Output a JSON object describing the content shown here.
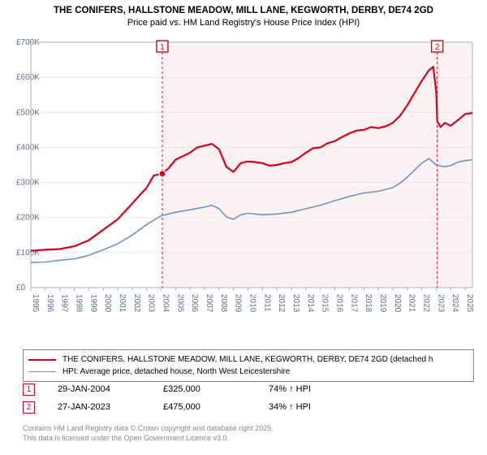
{
  "title_line1": "THE CONIFERS, HALLSTONE MEADOW, MILL LANE, KEGWORTH, DERBY, DE74 2GD",
  "title_line2": "Price paid vs. HM Land Registry's House Price Index (HPI)",
  "chart": {
    "type": "line",
    "background_color": "#ffffff",
    "plot_border_color": "#aab2c4",
    "grid_color": "#e3e7ef",
    "x_min": 1995,
    "x_max": 2025.5,
    "y_min": 0,
    "y_max": 700000,
    "y_ticks": [
      0,
      100000,
      200000,
      300000,
      400000,
      500000,
      600000,
      700000
    ],
    "y_tick_labels": [
      "£0",
      "£100K",
      "£200K",
      "£300K",
      "£400K",
      "£500K",
      "£600K",
      "£700K"
    ],
    "x_ticks": [
      1995,
      1996,
      1997,
      1998,
      1999,
      2000,
      2001,
      2002,
      2003,
      2004,
      2005,
      2006,
      2007,
      2008,
      2009,
      2010,
      2011,
      2012,
      2013,
      2014,
      2015,
      2016,
      2017,
      2018,
      2019,
      2020,
      2021,
      2022,
      2023,
      2024,
      2025
    ],
    "marker_lines": [
      {
        "x": 2004.08,
        "label": "1",
        "color": "#d9001b"
      },
      {
        "x": 2023.07,
        "label": "2",
        "color": "#d9001b"
      }
    ],
    "shade": {
      "from": 2004.08,
      "to": 2025.5,
      "color": "#fdf2f3"
    },
    "series": [
      {
        "name": "THE CONIFERS, HALLSTONE MEADOW, MILL LANE, KEGWORTH, DERBY, DE74 2GD (detached h",
        "color": "#d9001b",
        "width": 2.2,
        "points": [
          [
            1995,
            105000
          ],
          [
            1996,
            108000
          ],
          [
            1997,
            110000
          ],
          [
            1998,
            118000
          ],
          [
            1999,
            135000
          ],
          [
            2000,
            165000
          ],
          [
            2001,
            195000
          ],
          [
            2002,
            240000
          ],
          [
            2003,
            285000
          ],
          [
            2003.5,
            320000
          ],
          [
            2004.08,
            325000
          ],
          [
            2004.5,
            340000
          ],
          [
            2005,
            365000
          ],
          [
            2005.5,
            375000
          ],
          [
            2006,
            385000
          ],
          [
            2006.5,
            400000
          ],
          [
            2007,
            405000
          ],
          [
            2007.5,
            410000
          ],
          [
            2008,
            395000
          ],
          [
            2008.5,
            345000
          ],
          [
            2009,
            330000
          ],
          [
            2009.5,
            355000
          ],
          [
            2010,
            360000
          ],
          [
            2010.5,
            358000
          ],
          [
            2011,
            355000
          ],
          [
            2011.5,
            348000
          ],
          [
            2012,
            350000
          ],
          [
            2012.5,
            355000
          ],
          [
            2013,
            358000
          ],
          [
            2013.5,
            370000
          ],
          [
            2014,
            385000
          ],
          [
            2014.5,
            398000
          ],
          [
            2015,
            400000
          ],
          [
            2015.5,
            412000
          ],
          [
            2016,
            418000
          ],
          [
            2016.5,
            430000
          ],
          [
            2017,
            440000
          ],
          [
            2017.5,
            448000
          ],
          [
            2018,
            450000
          ],
          [
            2018.5,
            458000
          ],
          [
            2019,
            455000
          ],
          [
            2019.5,
            460000
          ],
          [
            2020,
            470000
          ],
          [
            2020.5,
            490000
          ],
          [
            2021,
            520000
          ],
          [
            2021.5,
            555000
          ],
          [
            2022,
            590000
          ],
          [
            2022.5,
            620000
          ],
          [
            2022.8,
            630000
          ],
          [
            2023.0,
            560000
          ],
          [
            2023.07,
            475000
          ],
          [
            2023.3,
            458000
          ],
          [
            2023.6,
            470000
          ],
          [
            2024,
            462000
          ],
          [
            2024.5,
            478000
          ],
          [
            2025,
            495000
          ],
          [
            2025.5,
            498000
          ]
        ]
      },
      {
        "name": "HPI: Average price, detached house, North West Leicestershire",
        "color": "#6d93c9",
        "width": 1.6,
        "points": [
          [
            1995,
            72000
          ],
          [
            1996,
            73000
          ],
          [
            1997,
            78000
          ],
          [
            1998,
            82000
          ],
          [
            1999,
            92000
          ],
          [
            2000,
            108000
          ],
          [
            2001,
            125000
          ],
          [
            2002,
            150000
          ],
          [
            2003,
            180000
          ],
          [
            2004,
            205000
          ],
          [
            2005,
            215000
          ],
          [
            2006,
            222000
          ],
          [
            2007,
            230000
          ],
          [
            2007.5,
            235000
          ],
          [
            2008,
            225000
          ],
          [
            2008.5,
            202000
          ],
          [
            2009,
            195000
          ],
          [
            2009.5,
            208000
          ],
          [
            2010,
            212000
          ],
          [
            2011,
            208000
          ],
          [
            2012,
            210000
          ],
          [
            2013,
            215000
          ],
          [
            2014,
            225000
          ],
          [
            2015,
            235000
          ],
          [
            2016,
            248000
          ],
          [
            2017,
            260000
          ],
          [
            2018,
            270000
          ],
          [
            2019,
            275000
          ],
          [
            2020,
            285000
          ],
          [
            2020.5,
            298000
          ],
          [
            2021,
            315000
          ],
          [
            2021.5,
            335000
          ],
          [
            2022,
            355000
          ],
          [
            2022.5,
            368000
          ],
          [
            2023,
            350000
          ],
          [
            2023.5,
            345000
          ],
          [
            2024,
            348000
          ],
          [
            2024.5,
            358000
          ],
          [
            2025,
            362000
          ],
          [
            2025.5,
            365000
          ]
        ]
      }
    ]
  },
  "legend": {
    "items": [
      {
        "label": "THE CONIFERS, HALLSTONE MEADOW, MILL LANE, KEGWORTH, DERBY, DE74 2GD (detached h",
        "color": "#d9001b",
        "width": 2.2
      },
      {
        "label": "HPI: Average price, detached house, North West Leicestershire",
        "color": "#6d93c9",
        "width": 1.6
      }
    ]
  },
  "marker_rows": [
    {
      "num": "1",
      "color": "#d9001b",
      "date": "29-JAN-2004",
      "price": "£325,000",
      "delta": "74% ↑ HPI"
    },
    {
      "num": "2",
      "color": "#d9001b",
      "date": "27-JAN-2023",
      "price": "£475,000",
      "delta": "34% ↑ HPI"
    }
  ],
  "footer_line1": "Contains HM Land Registry data © Crown copyright and database right 2025.",
  "footer_line2": "This data is licensed under the Open Government Licence v3.0."
}
